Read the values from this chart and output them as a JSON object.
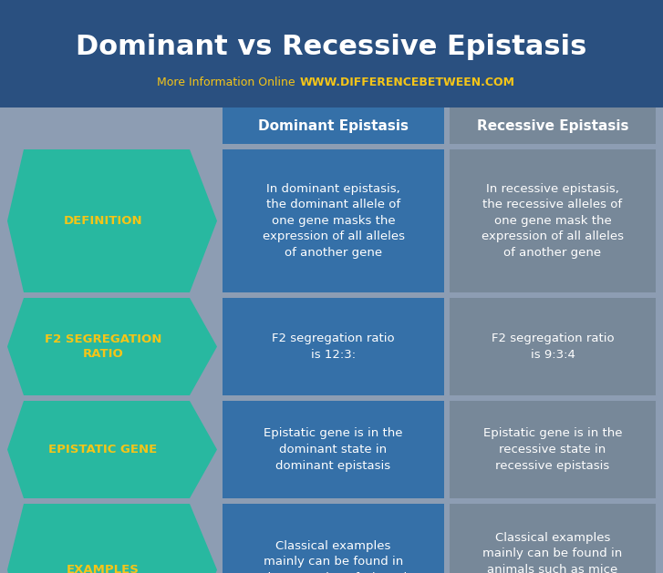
{
  "title": "Dominant vs Recessive Epistasis",
  "subtitle_normal": "More Information Online",
  "subtitle_url": "WWW.DIFFERENCEBETWEEN.COM",
  "header_col1": "Dominant Epistasis",
  "header_col2": "Recessive Epistasis",
  "rows": [
    {
      "label": "DEFINITION",
      "col1": "In dominant epistasis,\nthe dominant allele of\none gene masks the\nexpression of all alleles\nof another gene",
      "col2": "In recessive epistasis,\nthe recessive alleles of\none gene mask the\nexpression of all alleles\nof another gene"
    },
    {
      "label": "F2 SEGREGATION\nRATIO",
      "col1": "F2 segregation ratio\nis 12:3:",
      "col2": "F2 segregation ratio\nis 9:3:4"
    },
    {
      "label": "EPISTATIC GENE",
      "col1": "Epistatic gene is in the\ndominant state in\ndominant epistasis",
      "col2": "Epistatic gene is in the\nrecessive state in\nrecessive epistasis"
    },
    {
      "label": "EXAMPLES",
      "col1": "Classical examples\nmainly can be found in\nplants, such as fruit and\nflower colour of plants",
      "col2": "Classical examples\nmainly can be found in\nanimals such as mice\ncoat colour and\nLabrador dogs' colour"
    }
  ],
  "bg_color": "#8d9db3",
  "title_bg": "#2a5080",
  "col1_bg": "#3570a8",
  "col2_bg": "#778899",
  "label_bg": "#28b8a0",
  "label_text_color": "#f5c518",
  "header_text_color": "#ffffff",
  "col_text_color": "#ffffff",
  "title_text_color": "#ffffff",
  "subtitle_normal_color": "#f5c518",
  "subtitle_url_color": "#f5c518"
}
